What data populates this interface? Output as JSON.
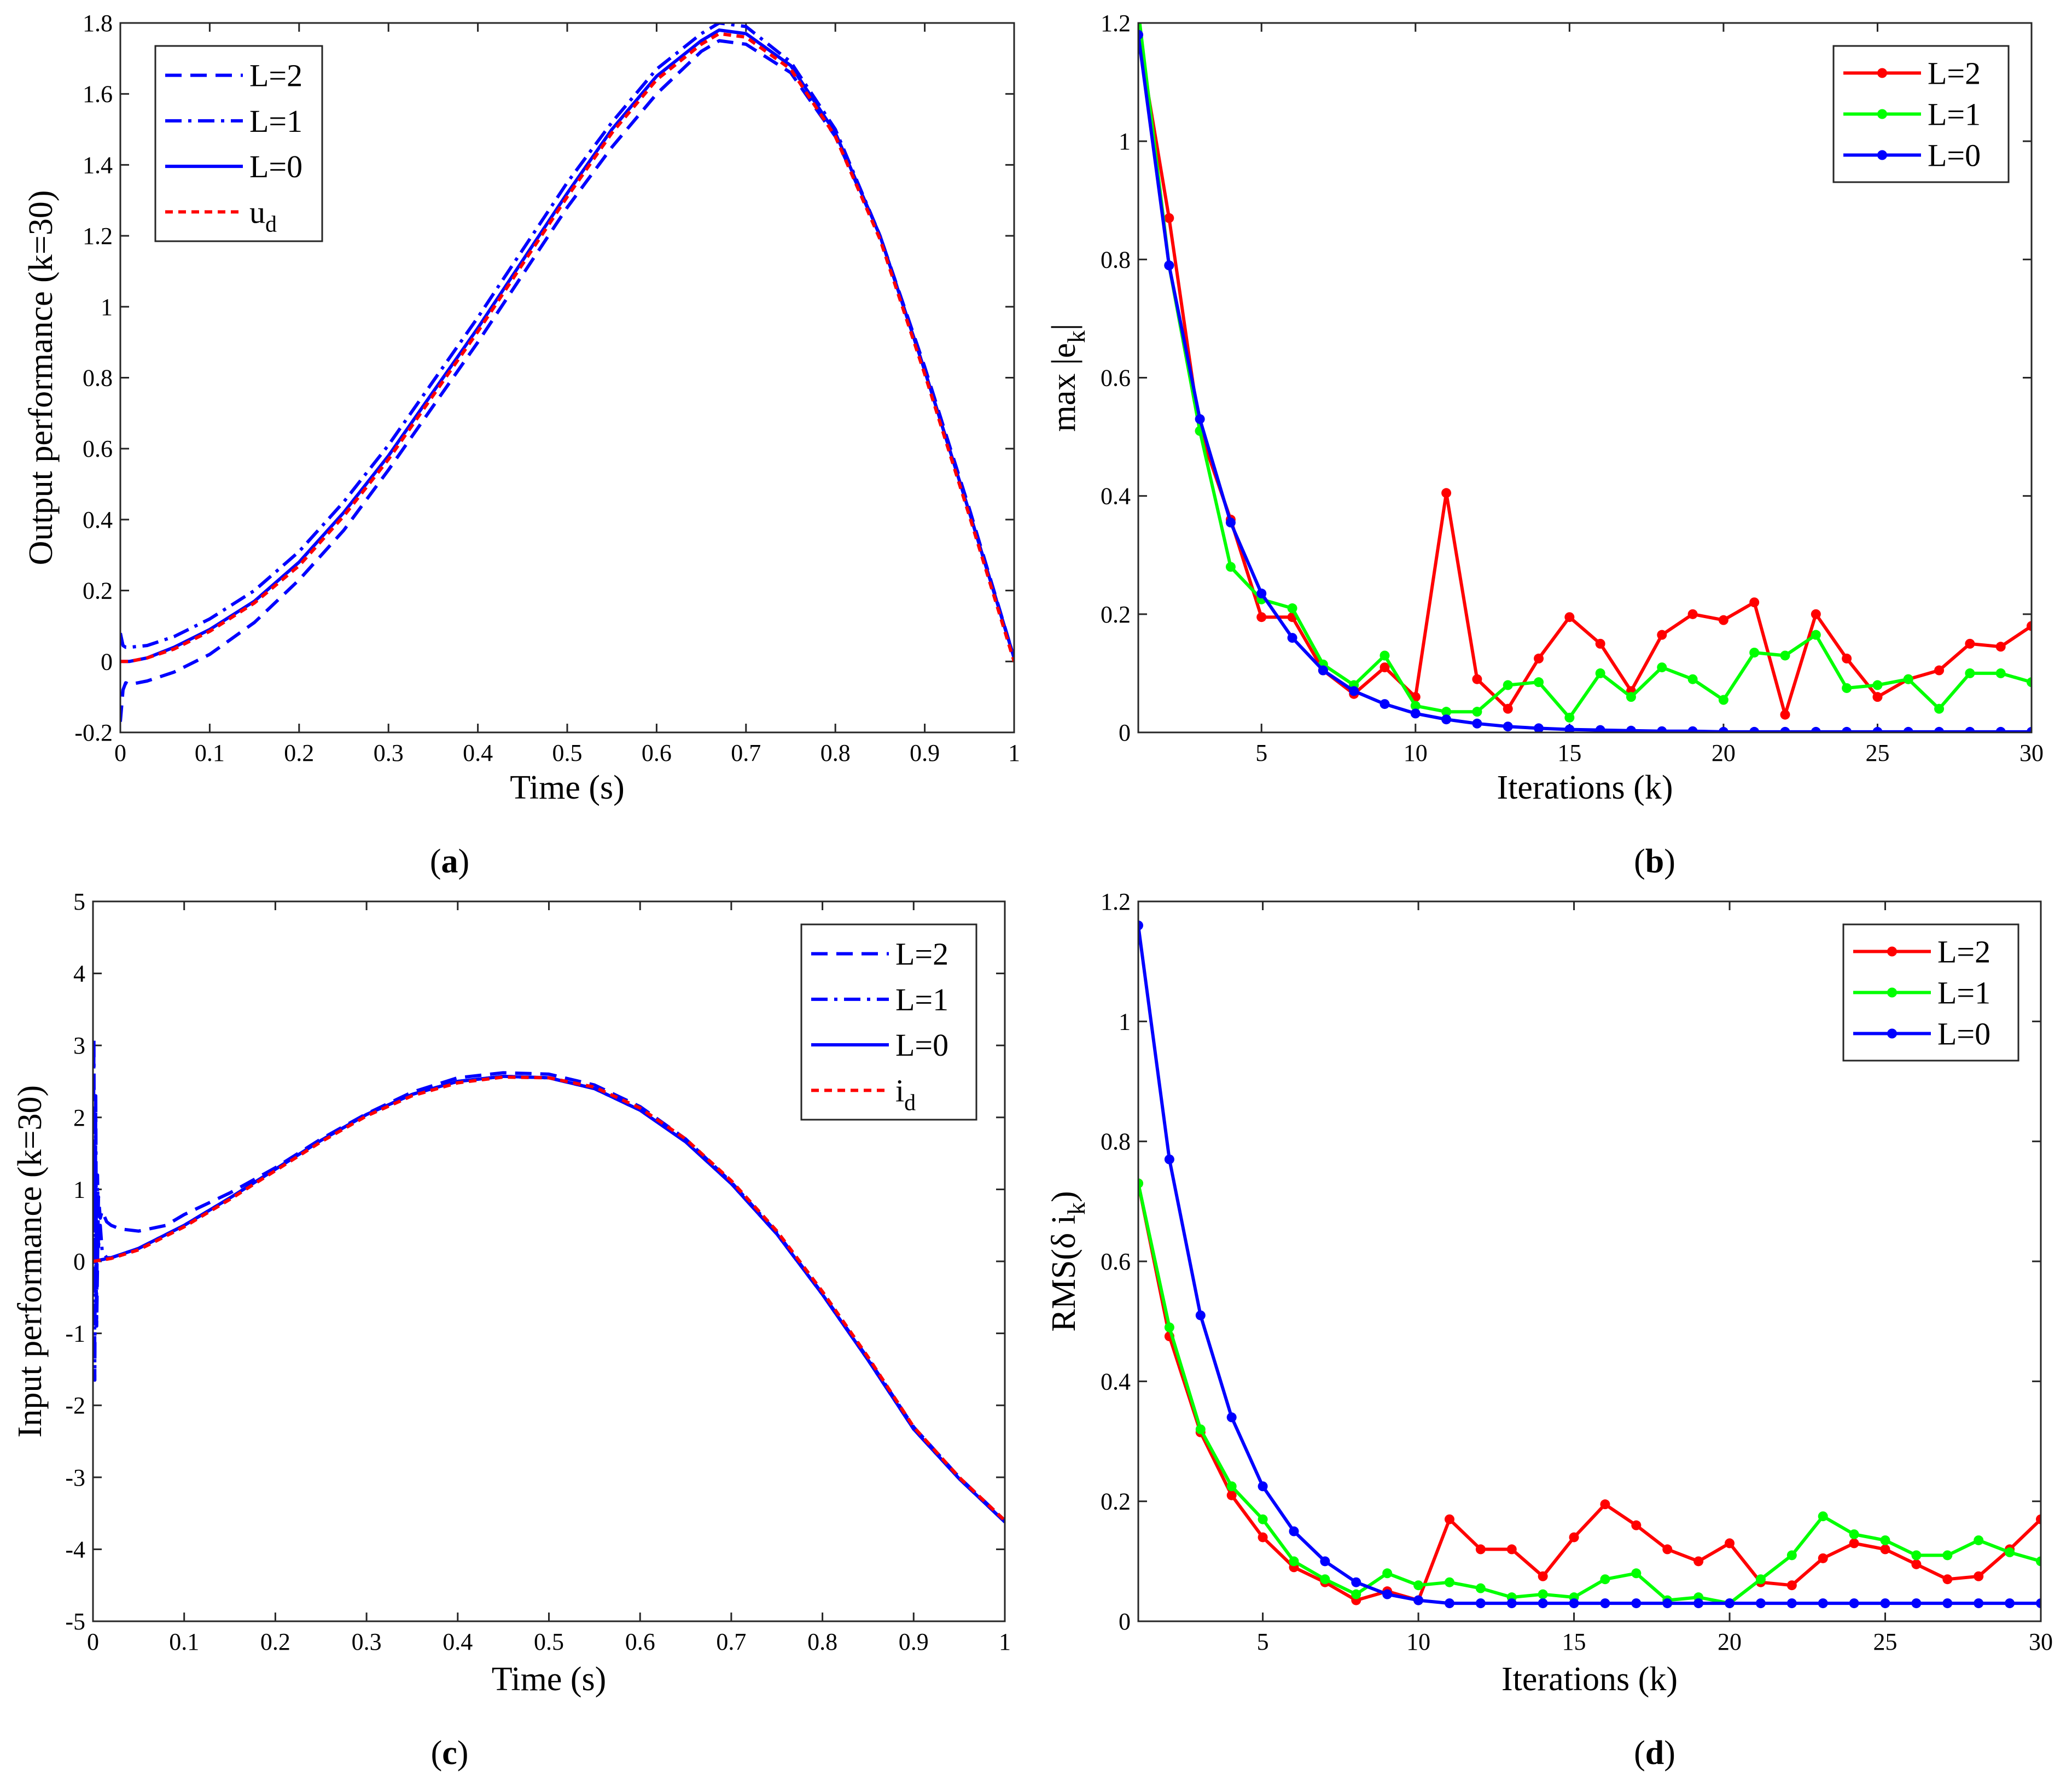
{
  "chart_data": [
    {
      "id": "a",
      "type": "line",
      "caption_letter": "a",
      "xlabel": "Time (s)",
      "ylabel": "Output performance (k=30)",
      "xlim": [
        0,
        1
      ],
      "ylim": [
        -0.2,
        1.8
      ],
      "xticks": [
        0,
        0.1,
        0.2,
        0.3,
        0.4,
        0.5,
        0.6,
        0.7,
        0.8,
        0.9,
        1
      ],
      "xtick_labels": [
        "0",
        "0.1",
        "0.2",
        "0.3",
        "0.4",
        "0.5",
        "0.6",
        "0.7",
        "0.8",
        "0.9",
        "1"
      ],
      "yticks": [
        -0.2,
        0,
        0.2,
        0.4,
        0.6,
        0.8,
        1,
        1.2,
        1.4,
        1.6,
        1.8
      ],
      "ytick_labels": [
        "-0.2",
        "0",
        "0.2",
        "0.4",
        "0.6",
        "0.8",
        "1",
        "1.2",
        "1.4",
        "1.6",
        "1.8"
      ],
      "legend": "top-left",
      "series": [
        {
          "name": "L=2",
          "label_main": "L=2",
          "label_sub": "",
          "color": "#0000ff",
          "style": "dashed",
          "x": [
            0,
            0.003,
            0.006,
            0.01,
            0.03,
            0.06,
            0.1,
            0.15,
            0.2,
            0.25,
            0.3,
            0.35,
            0.4,
            0.45,
            0.5,
            0.55,
            0.6,
            0.65,
            0.67,
            0.7,
            0.75,
            0.8,
            0.85,
            0.9,
            0.95,
            1.0
          ],
          "y": [
            -0.17,
            -0.08,
            -0.06,
            -0.065,
            -0.055,
            -0.03,
            0.02,
            0.11,
            0.23,
            0.37,
            0.54,
            0.72,
            0.9,
            1.09,
            1.28,
            1.45,
            1.6,
            1.72,
            1.75,
            1.74,
            1.66,
            1.48,
            1.2,
            0.83,
            0.43,
            0.01
          ]
        },
        {
          "name": "L=1",
          "label_main": "L=1",
          "label_sub": "",
          "color": "#0000ff",
          "style": "dashdot",
          "x": [
            0,
            0.003,
            0.006,
            0.01,
            0.03,
            0.06,
            0.1,
            0.15,
            0.2,
            0.25,
            0.3,
            0.35,
            0.4,
            0.45,
            0.5,
            0.55,
            0.6,
            0.65,
            0.67,
            0.7,
            0.75,
            0.8,
            0.85,
            0.9,
            0.95,
            1.0
          ],
          "y": [
            0.08,
            0.045,
            0.04,
            0.04,
            0.045,
            0.07,
            0.12,
            0.2,
            0.31,
            0.45,
            0.61,
            0.79,
            0.97,
            1.16,
            1.35,
            1.52,
            1.67,
            1.77,
            1.8,
            1.79,
            1.69,
            1.5,
            1.2,
            0.82,
            0.42,
            0.01
          ]
        },
        {
          "name": "L=0",
          "label_main": "L=0",
          "label_sub": "",
          "color": "#0000ff",
          "style": "solid",
          "x": [
            0,
            0.01,
            0.03,
            0.06,
            0.1,
            0.15,
            0.2,
            0.25,
            0.3,
            0.35,
            0.4,
            0.45,
            0.5,
            0.55,
            0.6,
            0.65,
            0.67,
            0.7,
            0.75,
            0.8,
            0.85,
            0.9,
            0.95,
            1.0
          ],
          "y": [
            0.0,
            0.0,
            0.01,
            0.04,
            0.09,
            0.17,
            0.28,
            0.42,
            0.58,
            0.76,
            0.94,
            1.13,
            1.32,
            1.5,
            1.65,
            1.75,
            1.78,
            1.77,
            1.68,
            1.49,
            1.2,
            0.82,
            0.42,
            0.01
          ]
        },
        {
          "name": "u_d",
          "label_main": "u",
          "label_sub": "d",
          "color": "#ff0000",
          "style": "dashed-fine",
          "x": [
            0,
            0.01,
            0.03,
            0.06,
            0.1,
            0.15,
            0.2,
            0.25,
            0.3,
            0.35,
            0.4,
            0.45,
            0.5,
            0.55,
            0.6,
            0.65,
            0.67,
            0.7,
            0.75,
            0.8,
            0.85,
            0.9,
            0.95,
            1.0
          ],
          "y": [
            0.0,
            0.0,
            0.01,
            0.035,
            0.085,
            0.165,
            0.27,
            0.41,
            0.57,
            0.75,
            0.93,
            1.12,
            1.31,
            1.49,
            1.64,
            1.74,
            1.77,
            1.76,
            1.67,
            1.48,
            1.19,
            0.81,
            0.41,
            0.0
          ]
        }
      ]
    },
    {
      "id": "b",
      "type": "line",
      "caption_letter": "b",
      "xlabel": "Iterations (k)",
      "ylabel_main": "max |e",
      "ylabel_sub": "k",
      "ylabel_end": "|",
      "xlim": [
        1,
        30
      ],
      "ylim": [
        0,
        1.2
      ],
      "xticks": [
        5,
        10,
        15,
        20,
        25,
        30
      ],
      "xtick_labels": [
        "5",
        "10",
        "15",
        "20",
        "25",
        "30"
      ],
      "yticks": [
        0,
        0.2,
        0.4,
        0.6,
        0.8,
        1,
        1.2
      ],
      "ytick_labels": [
        "0",
        "0.2",
        "0.4",
        "0.6",
        "0.8",
        "1",
        "1.2"
      ],
      "legend": "top-right",
      "x": [
        1,
        2,
        3,
        4,
        5,
        6,
        7,
        8,
        9,
        10,
        11,
        12,
        13,
        14,
        15,
        16,
        17,
        18,
        19,
        20,
        21,
        22,
        23,
        24,
        25,
        26,
        27,
        28,
        29,
        30
      ],
      "series": [
        {
          "name": "L=2",
          "label_main": "L=2",
          "label_sub": "",
          "color": "#ff0000",
          "values": [
            1.18,
            0.87,
            0.51,
            0.36,
            0.195,
            0.195,
            0.105,
            0.065,
            0.11,
            0.06,
            0.405,
            0.09,
            0.04,
            0.125,
            0.195,
            0.15,
            0.07,
            0.165,
            0.2,
            0.19,
            0.22,
            0.03,
            0.2,
            0.125,
            0.06,
            0.09,
            0.105,
            0.15,
            0.145,
            0.18
          ]
        },
        {
          "name": "L=1",
          "label_main": "L=1",
          "label_sub": "",
          "color": "#00ff00",
          "values": [
            1.22,
            0.79,
            0.51,
            0.28,
            0.225,
            0.21,
            0.115,
            0.08,
            0.13,
            0.045,
            0.035,
            0.035,
            0.08,
            0.085,
            0.025,
            0.1,
            0.06,
            0.11,
            0.09,
            0.055,
            0.135,
            0.13,
            0.165,
            0.075,
            0.08,
            0.09,
            0.04,
            0.1,
            0.1,
            0.085
          ]
        },
        {
          "name": "L=0",
          "label_main": "L=0",
          "label_sub": "",
          "color": "#0000ff",
          "values": [
            1.18,
            0.79,
            0.53,
            0.355,
            0.235,
            0.16,
            0.105,
            0.07,
            0.048,
            0.032,
            0.022,
            0.015,
            0.01,
            0.007,
            0.005,
            0.004,
            0.003,
            0.002,
            0.002,
            0.001,
            0.001,
            0.001,
            0.001,
            0.001,
            0.001,
            0.001,
            0.001,
            0.001,
            0.001,
            0.001
          ]
        }
      ]
    },
    {
      "id": "c",
      "type": "line",
      "caption_letter": "c",
      "xlabel": "Time (s)",
      "ylabel": "Input performance (k=30)",
      "xlim": [
        0,
        1
      ],
      "ylim": [
        -5,
        5
      ],
      "xticks": [
        0,
        0.1,
        0.2,
        0.3,
        0.4,
        0.5,
        0.6,
        0.7,
        0.8,
        0.9,
        1
      ],
      "xtick_labels": [
        "0",
        "0.1",
        "0.2",
        "0.3",
        "0.4",
        "0.5",
        "0.6",
        "0.7",
        "0.8",
        "0.9",
        "1"
      ],
      "yticks": [
        -5,
        -4,
        -3,
        -2,
        -1,
        0,
        1,
        2,
        3,
        4,
        5
      ],
      "ytick_labels": [
        "-5",
        "-4",
        "-3",
        "-2",
        "-1",
        "0",
        "1",
        "2",
        "3",
        "4",
        "5"
      ],
      "legend": "top-right",
      "series": [
        {
          "name": "L=2",
          "label_main": "L=2",
          "label_sub": "",
          "color": "#0000ff",
          "style": "dashed",
          "x": [
            0,
            0.002,
            0.004,
            0.006,
            0.008,
            0.01,
            0.015,
            0.02,
            0.03,
            0.05,
            0.08,
            0.1,
            0.15,
            0.2,
            0.25,
            0.3,
            0.35,
            0.4,
            0.45,
            0.5,
            0.55,
            0.6,
            0.65,
            0.7,
            0.75,
            0.8,
            0.85,
            0.9,
            0.95,
            1.0
          ],
          "y": [
            -0.3,
            1.4,
            -0.9,
            0.9,
            0.6,
            0.7,
            0.55,
            0.5,
            0.45,
            0.42,
            0.5,
            0.65,
            0.95,
            1.3,
            1.7,
            2.05,
            2.35,
            2.55,
            2.62,
            2.6,
            2.45,
            2.15,
            1.7,
            1.1,
            0.4,
            -0.45,
            -1.35,
            -2.3,
            -3.0,
            -3.6
          ]
        },
        {
          "name": "L=1",
          "label_main": "L=1",
          "label_sub": "",
          "color": "#0000ff",
          "style": "dashdot",
          "x": [
            0,
            0.001,
            0.002,
            0.003,
            0.004,
            0.005,
            0.006,
            0.008,
            0.01,
            0.015,
            0.02,
            0.05,
            0.1,
            0.15,
            0.2,
            0.25,
            0.3,
            0.35,
            0.4,
            0.45,
            0.5,
            0.55,
            0.6,
            0.65,
            0.7,
            0.75,
            0.8,
            0.85,
            0.9,
            0.95,
            1.0
          ],
          "y": [
            0.4,
            3.1,
            -1.65,
            2.3,
            -0.8,
            1.2,
            0.2,
            0.5,
            0.15,
            0.05,
            0.05,
            0.18,
            0.5,
            0.88,
            1.28,
            1.68,
            2.04,
            2.32,
            2.5,
            2.57,
            2.55,
            2.4,
            2.1,
            1.66,
            1.08,
            0.38,
            -0.46,
            -1.37,
            -2.33,
            -3.02,
            -3.62
          ]
        },
        {
          "name": "L=0",
          "label_main": "L=0",
          "label_sub": "",
          "color": "#0000ff",
          "style": "solid",
          "x": [
            0,
            0.02,
            0.05,
            0.1,
            0.15,
            0.2,
            0.25,
            0.3,
            0.35,
            0.4,
            0.45,
            0.5,
            0.55,
            0.6,
            0.65,
            0.7,
            0.75,
            0.8,
            0.85,
            0.9,
            0.95,
            1.0
          ],
          "y": [
            0.0,
            0.05,
            0.18,
            0.5,
            0.88,
            1.28,
            1.68,
            2.04,
            2.32,
            2.5,
            2.57,
            2.55,
            2.4,
            2.1,
            1.66,
            1.08,
            0.38,
            -0.46,
            -1.37,
            -2.33,
            -3.02,
            -3.62
          ]
        },
        {
          "name": "i_d",
          "label_main": "i",
          "label_sub": "d",
          "color": "#ff0000",
          "style": "dashed-fine",
          "x": [
            0,
            0.02,
            0.05,
            0.1,
            0.15,
            0.2,
            0.25,
            0.3,
            0.35,
            0.4,
            0.45,
            0.5,
            0.55,
            0.6,
            0.65,
            0.7,
            0.75,
            0.8,
            0.85,
            0.9,
            0.95,
            1.0
          ],
          "y": [
            0.0,
            0.04,
            0.16,
            0.48,
            0.86,
            1.26,
            1.66,
            2.02,
            2.3,
            2.48,
            2.56,
            2.55,
            2.42,
            2.13,
            1.7,
            1.12,
            0.42,
            -0.42,
            -1.33,
            -2.3,
            -3.0,
            -3.6
          ]
        }
      ]
    },
    {
      "id": "d",
      "type": "line",
      "caption_letter": "d",
      "xlabel": "Iterations (k)",
      "ylabel_main": "RMS(δ i",
      "ylabel_sub": "k",
      "ylabel_end": ")",
      "xlim": [
        1,
        30
      ],
      "ylim": [
        0,
        1.2
      ],
      "xticks": [
        5,
        10,
        15,
        20,
        25,
        30
      ],
      "xtick_labels": [
        "5",
        "10",
        "15",
        "20",
        "25",
        "30"
      ],
      "yticks": [
        0,
        0.2,
        0.4,
        0.6,
        0.8,
        1,
        1.2
      ],
      "ytick_labels": [
        "0",
        "0.2",
        "0.4",
        "0.6",
        "0.8",
        "1",
        "1.2"
      ],
      "legend": "top-right",
      "x": [
        1,
        2,
        3,
        4,
        5,
        6,
        7,
        8,
        9,
        10,
        11,
        12,
        13,
        14,
        15,
        16,
        17,
        18,
        19,
        20,
        21,
        22,
        23,
        24,
        25,
        26,
        27,
        28,
        29,
        30
      ],
      "series": [
        {
          "name": "L=2",
          "label_main": "L=2",
          "label_sub": "",
          "color": "#ff0000",
          "values": [
            0.73,
            0.475,
            0.315,
            0.21,
            0.14,
            0.09,
            0.065,
            0.035,
            0.05,
            0.035,
            0.17,
            0.12,
            0.12,
            0.075,
            0.14,
            0.195,
            0.16,
            0.12,
            0.1,
            0.13,
            0.065,
            0.06,
            0.105,
            0.13,
            0.12,
            0.095,
            0.07,
            0.075,
            0.12,
            0.17
          ]
        },
        {
          "name": "L=1",
          "label_main": "L=1",
          "label_sub": "",
          "color": "#00ff00",
          "values": [
            0.73,
            0.49,
            0.32,
            0.225,
            0.17,
            0.1,
            0.07,
            0.045,
            0.08,
            0.06,
            0.065,
            0.055,
            0.04,
            0.045,
            0.04,
            0.07,
            0.08,
            0.035,
            0.04,
            0.03,
            0.07,
            0.11,
            0.175,
            0.145,
            0.135,
            0.11,
            0.11,
            0.135,
            0.115,
            0.1
          ]
        },
        {
          "name": "L=0",
          "label_main": "L=0",
          "label_sub": "",
          "color": "#0000ff",
          "values": [
            1.16,
            0.77,
            0.51,
            0.34,
            0.225,
            0.15,
            0.1,
            0.065,
            0.045,
            0.035,
            0.03,
            0.03,
            0.03,
            0.03,
            0.03,
            0.03,
            0.03,
            0.03,
            0.03,
            0.03,
            0.03,
            0.03,
            0.03,
            0.03,
            0.03,
            0.03,
            0.03,
            0.03,
            0.03,
            0.03
          ]
        }
      ]
    }
  ]
}
